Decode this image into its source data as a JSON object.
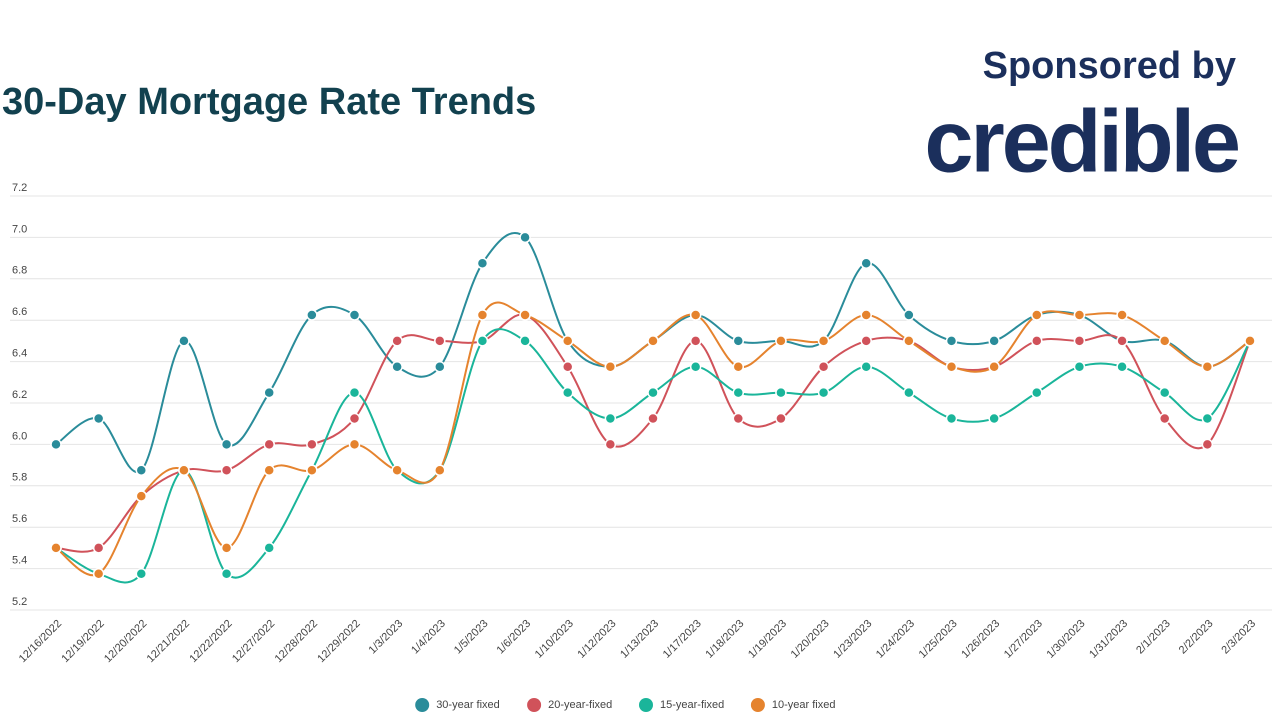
{
  "sponsor": {
    "label": "Sponsored by",
    "brand": "credible"
  },
  "chart_data": {
    "type": "line",
    "title": "30-Day Mortgage Rate Trends",
    "categories": [
      "12/16/2022",
      "12/19/2022",
      "12/20/2022",
      "12/21/2022",
      "12/22/2022",
      "12/27/2022",
      "12/28/2022",
      "12/29/2022",
      "1/3/2023",
      "1/4/2023",
      "1/5/2023",
      "1/6/2023",
      "1/10/2023",
      "1/12/2023",
      "1/13/2023",
      "1/17/2023",
      "1/18/2023",
      "1/19/2023",
      "1/20/2023",
      "1/23/2023",
      "1/24/2023",
      "1/25/2023",
      "1/26/2023",
      "1/27/2023",
      "1/30/2023",
      "1/31/2023",
      "2/1/2023",
      "2/2/2023",
      "2/3/2023"
    ],
    "series": [
      {
        "name": "30-year fixed",
        "color": "#2a8c9a",
        "values": [
          6.0,
          6.125,
          5.875,
          6.5,
          6.0,
          6.25,
          6.625,
          6.625,
          6.375,
          6.375,
          6.875,
          7.0,
          6.5,
          6.375,
          6.5,
          6.625,
          6.5,
          6.5,
          6.5,
          6.875,
          6.625,
          6.5,
          6.5,
          6.625,
          6.625,
          6.5,
          6.5,
          6.375,
          6.5
        ]
      },
      {
        "name": "20-year-fixed",
        "color": "#d0525a",
        "values": [
          5.5,
          5.5,
          5.75,
          5.875,
          5.875,
          6.0,
          6.0,
          6.125,
          6.5,
          6.5,
          6.5,
          6.625,
          6.375,
          6.0,
          6.125,
          6.5,
          6.125,
          6.125,
          6.375,
          6.5,
          6.5,
          6.375,
          6.375,
          6.5,
          6.5,
          6.5,
          6.125,
          6.0,
          6.5
        ]
      },
      {
        "name": "15-year-fixed",
        "color": "#1ab59a",
        "values": [
          5.5,
          5.375,
          5.375,
          5.875,
          5.375,
          5.5,
          5.875,
          6.25,
          5.875,
          5.875,
          6.5,
          6.5,
          6.25,
          6.125,
          6.25,
          6.375,
          6.25,
          6.25,
          6.25,
          6.375,
          6.25,
          6.125,
          6.125,
          6.25,
          6.375,
          6.375,
          6.25,
          6.125,
          6.5
        ]
      },
      {
        "name": "10-year fixed",
        "color": "#e5832e",
        "values": [
          5.5,
          5.375,
          5.75,
          5.875,
          5.5,
          5.875,
          5.875,
          6.0,
          5.875,
          5.875,
          6.625,
          6.625,
          6.5,
          6.375,
          6.5,
          6.625,
          6.375,
          6.5,
          6.5,
          6.625,
          6.5,
          6.375,
          6.375,
          6.625,
          6.625,
          6.625,
          6.5,
          6.375,
          6.5
        ]
      }
    ],
    "ylim": [
      5.2,
      7.2
    ],
    "yticks": [
      5.2,
      5.4,
      5.6,
      5.8,
      {
        "value": 6.0,
        "label": "6.0"
      },
      6.2,
      6.4,
      6.6,
      6.8,
      {
        "value": 7.0,
        "label": "7.0"
      },
      7.2
    ],
    "grid": true,
    "legend": "bottom"
  }
}
